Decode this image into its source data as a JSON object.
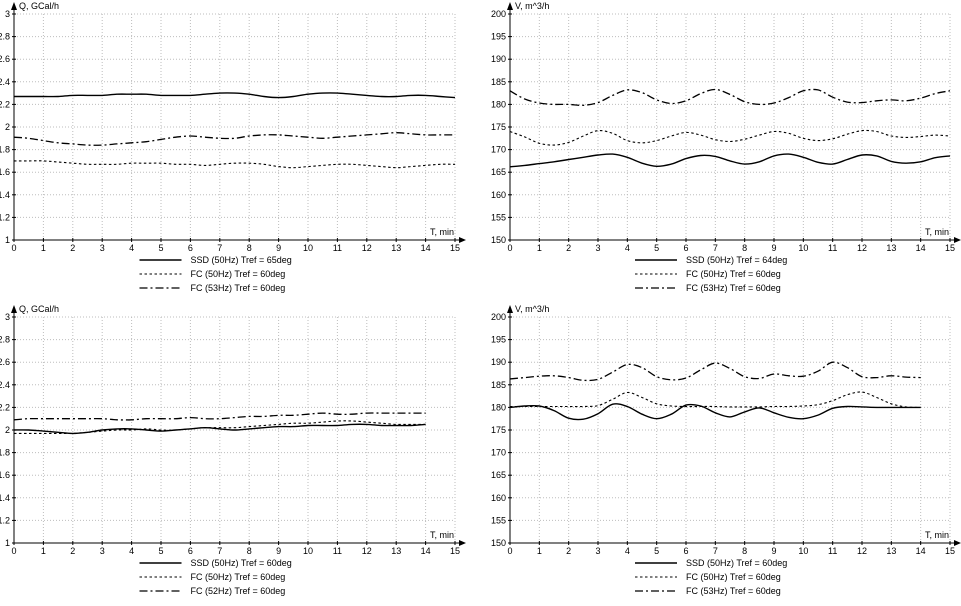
{
  "page": {
    "background": "#ffffff",
    "line_color": "#000000",
    "grid_color": "#bdbdbd"
  },
  "chart_data": [
    {
      "id": "top-left",
      "type": "line",
      "ylabel": "Q, GCal/h",
      "xlabel": "T, min",
      "ylim": [
        1,
        3
      ],
      "ytick_step": 0.2,
      "xlim": [
        0,
        15
      ],
      "xtick_step": 1,
      "grid": true,
      "legend_position": "bottom",
      "x_start": 0,
      "x_step": 0.5,
      "series": [
        {
          "name": "SSD (50Hz) Tref = 65deg",
          "style": "solid",
          "values": [
            2.27,
            2.27,
            2.27,
            2.27,
            2.28,
            2.28,
            2.28,
            2.29,
            2.29,
            2.29,
            2.28,
            2.28,
            2.28,
            2.29,
            2.3,
            2.3,
            2.29,
            2.27,
            2.26,
            2.27,
            2.29,
            2.3,
            2.3,
            2.29,
            2.28,
            2.27,
            2.27,
            2.28,
            2.28,
            2.27,
            2.26
          ]
        },
        {
          "name": "FC (50Hz) Tref = 60deg",
          "style": "dashed",
          "values": [
            1.7,
            1.7,
            1.7,
            1.69,
            1.68,
            1.67,
            1.67,
            1.67,
            1.68,
            1.68,
            1.68,
            1.67,
            1.67,
            1.66,
            1.67,
            1.68,
            1.68,
            1.67,
            1.65,
            1.64,
            1.65,
            1.66,
            1.67,
            1.67,
            1.66,
            1.65,
            1.64,
            1.65,
            1.66,
            1.67,
            1.67
          ]
        },
        {
          "name": "FC (53Hz) Tref = 60deg",
          "style": "dashdot",
          "values": [
            1.91,
            1.9,
            1.88,
            1.86,
            1.85,
            1.84,
            1.84,
            1.85,
            1.86,
            1.87,
            1.89,
            1.91,
            1.92,
            1.91,
            1.9,
            1.9,
            1.92,
            1.93,
            1.93,
            1.92,
            1.91,
            1.9,
            1.91,
            1.92,
            1.93,
            1.94,
            1.95,
            1.94,
            1.93,
            1.93,
            1.93
          ]
        }
      ]
    },
    {
      "id": "top-right",
      "type": "line",
      "ylabel": "V, m^3/h",
      "xlabel": "T, min",
      "ylim": [
        150,
        200
      ],
      "ytick_step": 5,
      "xlim": [
        0,
        15
      ],
      "xtick_step": 1,
      "grid": true,
      "legend_position": "bottom",
      "x_start": 0,
      "x_step": 0.5,
      "series": [
        {
          "name": "SSD (50Hz) Tref = 64deg",
          "style": "solid",
          "values": [
            166.2,
            166.5,
            166.9,
            167.3,
            167.8,
            168.3,
            168.8,
            169.0,
            168.3,
            167.0,
            166.3,
            166.8,
            168.0,
            168.7,
            168.5,
            167.5,
            166.8,
            167.3,
            168.6,
            169.0,
            168.3,
            167.2,
            166.8,
            167.8,
            168.8,
            168.6,
            167.4,
            167.0,
            167.3,
            168.2,
            168.6
          ]
        },
        {
          "name": "FC (50Hz) Tref = 60deg",
          "style": "dashed",
          "values": [
            174.0,
            172.8,
            171.4,
            171.0,
            171.6,
            173.0,
            174.2,
            173.6,
            172.0,
            171.5,
            172.0,
            173.0,
            173.8,
            173.2,
            172.2,
            171.8,
            172.3,
            173.2,
            174.0,
            173.6,
            172.5,
            172.0,
            172.4,
            173.4,
            174.2,
            174.0,
            173.0,
            172.7,
            172.9,
            173.2,
            173.0
          ]
        },
        {
          "name": "FC (53Hz) Tref = 60deg",
          "style": "dashdot",
          "values": [
            183.0,
            181.2,
            180.3,
            180.0,
            180.0,
            179.8,
            180.4,
            182.0,
            183.2,
            182.6,
            181.0,
            180.2,
            180.8,
            182.4,
            183.3,
            182.2,
            180.6,
            180.0,
            180.3,
            181.5,
            183.0,
            183.2,
            181.6,
            180.5,
            180.4,
            180.8,
            181.0,
            180.8,
            181.4,
            182.4,
            183.0
          ]
        }
      ]
    },
    {
      "id": "bottom-left",
      "type": "line",
      "ylabel": "Q, GCal/h",
      "xlabel": "T, min",
      "ylim": [
        1,
        3
      ],
      "ytick_step": 0.2,
      "xlim": [
        0,
        15
      ],
      "xtick_step": 1,
      "grid": true,
      "legend_position": "bottom",
      "x_start": 0,
      "x_step": 0.5,
      "series": [
        {
          "name": "SSD (50Hz) Tref = 60deg",
          "style": "solid",
          "values": [
            2.0,
            2.0,
            1.99,
            1.98,
            1.97,
            1.98,
            2.0,
            2.01,
            2.01,
            2.0,
            1.99,
            2.0,
            2.01,
            2.02,
            2.01,
            2.0,
            2.01,
            2.02,
            2.03,
            2.03,
            2.04,
            2.04,
            2.04,
            2.05,
            2.05,
            2.04,
            2.04,
            2.04,
            2.05
          ]
        },
        {
          "name": "FC (50Hz) Tref = 60deg",
          "style": "dashed",
          "values": [
            1.97,
            1.97,
            1.97,
            1.97,
            1.97,
            1.98,
            1.99,
            2.0,
            2.0,
            2.01,
            2.0,
            2.0,
            2.01,
            2.02,
            2.02,
            2.02,
            2.03,
            2.04,
            2.05,
            2.06,
            2.06,
            2.07,
            2.08,
            2.08,
            2.07,
            2.06,
            2.05,
            2.05,
            2.05
          ]
        },
        {
          "name": "FC (52Hz) Tref = 60deg",
          "style": "dashdot",
          "values": [
            2.09,
            2.1,
            2.1,
            2.1,
            2.1,
            2.1,
            2.1,
            2.09,
            2.09,
            2.1,
            2.1,
            2.1,
            2.11,
            2.1,
            2.1,
            2.11,
            2.12,
            2.12,
            2.13,
            2.13,
            2.14,
            2.15,
            2.14,
            2.14,
            2.15,
            2.15,
            2.15,
            2.15,
            2.15
          ]
        }
      ]
    },
    {
      "id": "bottom-right",
      "type": "line",
      "ylabel": "V, m^3/h",
      "xlabel": "T, min",
      "ylim": [
        150,
        200
      ],
      "ytick_step": 5,
      "xlim": [
        0,
        15
      ],
      "xtick_step": 1,
      "grid": true,
      "legend_position": "bottom",
      "x_start": 0,
      "x_step": 0.5,
      "series": [
        {
          "name": "SSD (50Hz) Tref = 60deg",
          "style": "solid",
          "values": [
            180.0,
            180.3,
            180.3,
            179.3,
            177.6,
            177.4,
            178.6,
            180.7,
            180.2,
            178.5,
            177.5,
            178.5,
            180.5,
            180.3,
            178.8,
            177.9,
            179.0,
            179.9,
            178.8,
            177.8,
            177.5,
            178.3,
            179.8,
            180.2,
            180.1,
            180.0,
            180.0,
            180.0,
            180.0
          ]
        },
        {
          "name": "FC (50Hz) Tref = 60deg",
          "style": "dashed",
          "values": [
            180.2,
            180.2,
            180.2,
            180.2,
            180.2,
            180.2,
            180.4,
            181.8,
            183.3,
            182.2,
            180.8,
            180.3,
            180.2,
            180.2,
            180.2,
            180.1,
            180.1,
            180.1,
            180.2,
            180.2,
            180.3,
            180.6,
            181.5,
            182.8,
            183.4,
            182.2,
            180.8,
            180.1,
            180.0
          ]
        },
        {
          "name": "FC (53Hz) Tref = 60deg",
          "style": "dashdot",
          "values": [
            186.3,
            186.6,
            186.9,
            187.0,
            186.6,
            186.0,
            186.2,
            187.8,
            189.5,
            188.8,
            186.8,
            186.1,
            186.5,
            188.3,
            189.8,
            188.6,
            186.8,
            186.4,
            187.4,
            187.0,
            186.9,
            188.0,
            190.0,
            188.8,
            186.8,
            186.6,
            187.0,
            186.7,
            186.6
          ]
        }
      ]
    }
  ]
}
